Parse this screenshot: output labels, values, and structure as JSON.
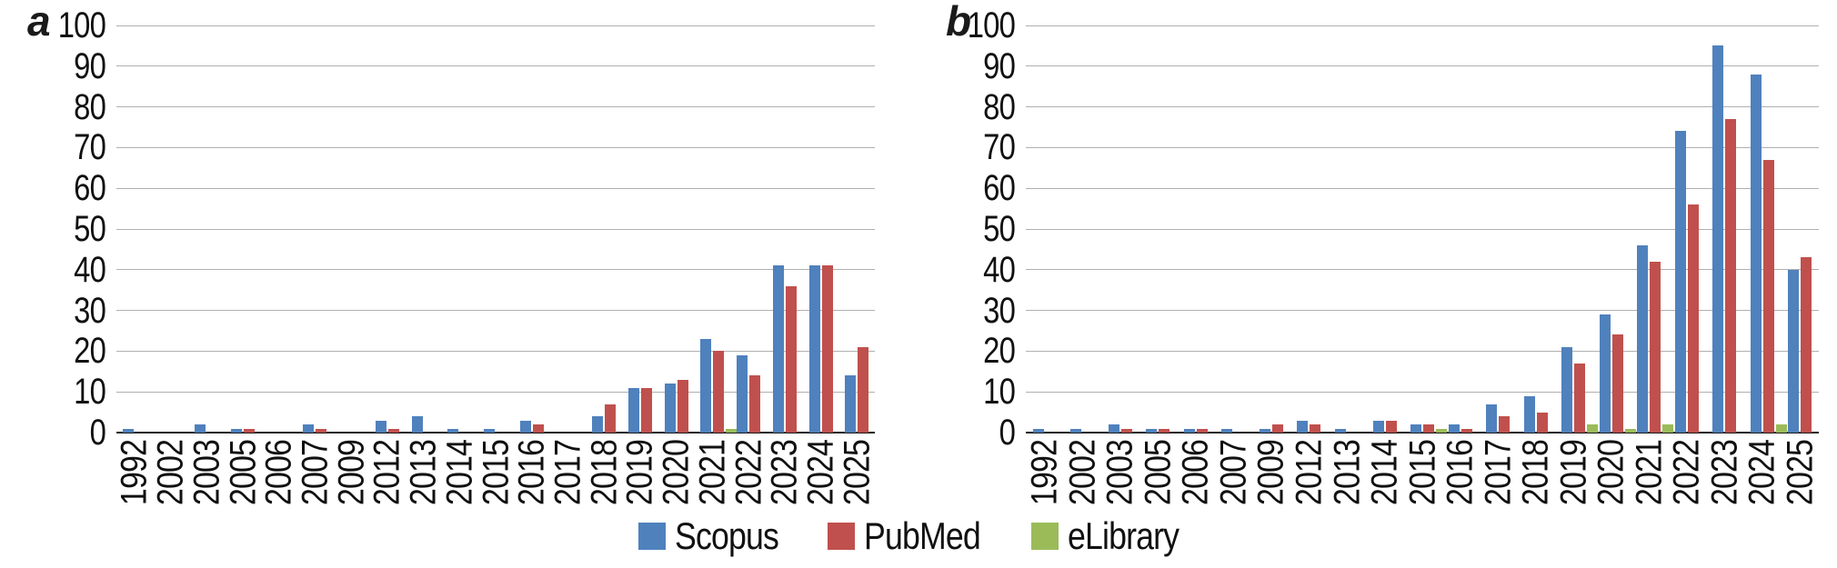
{
  "y_axis": {
    "min": 0,
    "max": 100,
    "step": 10,
    "ticks": [
      "0",
      "10",
      "20",
      "30",
      "40",
      "50",
      "60",
      "70",
      "80",
      "90",
      "100"
    ]
  },
  "categories": [
    "1992",
    "2002",
    "2003",
    "2005",
    "2006",
    "2007",
    "2009",
    "2012",
    "2013",
    "2014",
    "2015",
    "2016",
    "2017",
    "2018",
    "2019",
    "2020",
    "2021",
    "2022",
    "2023",
    "2024",
    "2025"
  ],
  "legend": {
    "items": [
      {
        "label": "Scopus",
        "color": "#4F81BD"
      },
      {
        "label": "PubMed",
        "color": "#C0504D"
      },
      {
        "label": "eLibrary",
        "color": "#9BBB59"
      }
    ]
  },
  "colors": {
    "gridline": "#b0b0b0",
    "axis": "#1a1a1a"
  },
  "chart_data": [
    {
      "type": "bar",
      "panel_label": "a",
      "title": "",
      "xlabel": "",
      "ylabel": "",
      "ylim": [
        0,
        100
      ],
      "grid": true,
      "legend_position": "bottom",
      "categories": [
        "1992",
        "2002",
        "2003",
        "2005",
        "2006",
        "2007",
        "2009",
        "2012",
        "2013",
        "2014",
        "2015",
        "2016",
        "2017",
        "2018",
        "2019",
        "2020",
        "2021",
        "2022",
        "2023",
        "2024",
        "2025"
      ],
      "series": [
        {
          "name": "Scopus",
          "color": "#4F81BD",
          "values": [
            1,
            0,
            2,
            1,
            0,
            2,
            0,
            3,
            4,
            1,
            1,
            3,
            0,
            4,
            11,
            12,
            23,
            19,
            41,
            41,
            14
          ]
        },
        {
          "name": "PubMed",
          "color": "#C0504D",
          "values": [
            0,
            0,
            0,
            1,
            0,
            1,
            0,
            1,
            0,
            0,
            0,
            2,
            0,
            7,
            11,
            13,
            20,
            14,
            36,
            41,
            21
          ]
        },
        {
          "name": "eLibrary",
          "color": "#9BBB59",
          "values": [
            0,
            0,
            0,
            0,
            0,
            0,
            0,
            0,
            0,
            0,
            0,
            0,
            0,
            0,
            0,
            0,
            1,
            0,
            0,
            0,
            0
          ]
        }
      ]
    },
    {
      "type": "bar",
      "panel_label": "b",
      "title": "",
      "xlabel": "",
      "ylabel": "",
      "ylim": [
        0,
        100
      ],
      "grid": true,
      "legend_position": "bottom",
      "categories": [
        "1992",
        "2002",
        "2003",
        "2005",
        "2006",
        "2007",
        "2009",
        "2012",
        "2013",
        "2014",
        "2015",
        "2016",
        "2017",
        "2018",
        "2019",
        "2020",
        "2021",
        "2022",
        "2023",
        "2024",
        "2025"
      ],
      "series": [
        {
          "name": "Scopus",
          "color": "#4F81BD",
          "values": [
            1,
            1,
            2,
            1,
            1,
            1,
            1,
            3,
            1,
            3,
            2,
            2,
            7,
            9,
            21,
            29,
            46,
            74,
            95,
            88,
            40
          ]
        },
        {
          "name": "PubMed",
          "color": "#C0504D",
          "values": [
            0,
            0,
            1,
            1,
            1,
            0,
            2,
            2,
            0,
            3,
            2,
            1,
            4,
            5,
            17,
            24,
            42,
            56,
            77,
            67,
            43
          ]
        },
        {
          "name": "eLibrary",
          "color": "#9BBB59",
          "values": [
            0,
            0,
            0,
            0,
            0,
            0,
            0,
            0,
            0,
            0,
            1,
            0,
            0,
            0,
            2,
            1,
            2,
            0,
            0,
            2,
            0
          ]
        }
      ]
    }
  ]
}
